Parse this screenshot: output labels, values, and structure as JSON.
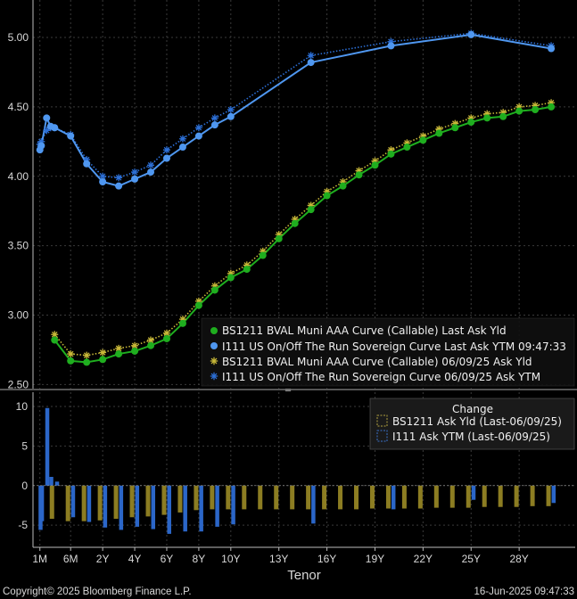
{
  "chart_data": [
    {
      "type": "line",
      "title": "",
      "ylim": [
        2.47,
        5.27
      ],
      "yticks": [
        "5.00",
        "4.50",
        "4.00",
        "3.50",
        "3.00",
        "2.50"
      ],
      "ytick_values": [
        5.0,
        4.5,
        4.0,
        3.5,
        3.0,
        2.5
      ],
      "grid": true,
      "legend_position": "bottom-right",
      "series": [
        {
          "name": "BS1211 BVAL Muni AAA Curve (Callable) Last Ask Yld",
          "color": "#1fae1f",
          "marker": "dot",
          "style": "solid",
          "points": [
            [
              1,
              2.82
            ],
            [
              2,
              2.67
            ],
            [
              3,
              2.66
            ],
            [
              4,
              2.68
            ],
            [
              5,
              2.72
            ],
            [
              6,
              2.74
            ],
            [
              7,
              2.78
            ],
            [
              8,
              2.83
            ],
            [
              9,
              2.94
            ],
            [
              10,
              3.07
            ],
            [
              11,
              3.18
            ],
            [
              12,
              3.27
            ],
            [
              13,
              3.33
            ],
            [
              14,
              3.43
            ],
            [
              15,
              3.55
            ],
            [
              16,
              3.66
            ],
            [
              17,
              3.76
            ],
            [
              18,
              3.86
            ],
            [
              19,
              3.93
            ],
            [
              20,
              4.01
            ],
            [
              21,
              4.08
            ],
            [
              22,
              4.16
            ],
            [
              23,
              4.21
            ],
            [
              24,
              4.26
            ],
            [
              25,
              4.31
            ],
            [
              26,
              4.35
            ],
            [
              27,
              4.39
            ],
            [
              28,
              4.42
            ],
            [
              29,
              4.43
            ],
            [
              30,
              4.47
            ],
            [
              31,
              4.48
            ],
            [
              32,
              4.5
            ]
          ]
        },
        {
          "name": "I111 US On/Off The Run Sovereign Curve Last Ask YTM 09:47:33",
          "color": "#4f97f0",
          "marker": "dot",
          "style": "solid",
          "points": [
            [
              0.08,
              4.19
            ],
            [
              0.17,
              4.22
            ],
            [
              0.5,
              4.42
            ],
            [
              0.75,
              4.36
            ],
            [
              1,
              4.35
            ],
            [
              2,
              4.29
            ],
            [
              3,
              4.09
            ],
            [
              4,
              3.96
            ],
            [
              5,
              3.93
            ],
            [
              6,
              3.98
            ],
            [
              7,
              4.03
            ],
            [
              8,
              4.13
            ],
            [
              9,
              4.21
            ],
            [
              10,
              4.29
            ],
            [
              11,
              4.37
            ],
            [
              12,
              4.43
            ],
            [
              17,
              4.82
            ],
            [
              22,
              4.94
            ],
            [
              27,
              5.02
            ],
            [
              32,
              4.92
            ]
          ]
        },
        {
          "name": "BS1211 BVAL Muni AAA Curve (Callable) 06/09/25 Ask Yld",
          "color": "#c8b838",
          "marker": "star",
          "style": "dotted",
          "points": [
            [
              1,
              2.86
            ],
            [
              2,
              2.72
            ],
            [
              3,
              2.71
            ],
            [
              4,
              2.73
            ],
            [
              5,
              2.76
            ],
            [
              6,
              2.78
            ],
            [
              7,
              2.82
            ],
            [
              8,
              2.87
            ],
            [
              9,
              2.97
            ],
            [
              10,
              3.1
            ],
            [
              11,
              3.21
            ],
            [
              12,
              3.3
            ],
            [
              13,
              3.36
            ],
            [
              14,
              3.46
            ],
            [
              15,
              3.58
            ],
            [
              16,
              3.69
            ],
            [
              17,
              3.79
            ],
            [
              18,
              3.89
            ],
            [
              19,
              3.96
            ],
            [
              20,
              4.04
            ],
            [
              21,
              4.11
            ],
            [
              22,
              4.19
            ],
            [
              23,
              4.24
            ],
            [
              24,
              4.29
            ],
            [
              25,
              4.34
            ],
            [
              26,
              4.38
            ],
            [
              27,
              4.42
            ],
            [
              28,
              4.45
            ],
            [
              29,
              4.46
            ],
            [
              30,
              4.5
            ],
            [
              31,
              4.51
            ],
            [
              32,
              4.53
            ]
          ]
        },
        {
          "name": "I111 US On/Off The Run Sovereign Curve 06/09/25 Ask YTM",
          "color": "#2c6fd6",
          "marker": "star",
          "style": "dotted",
          "points": [
            [
              0.08,
              4.23
            ],
            [
              0.17,
              4.25
            ],
            [
              0.5,
              4.33
            ],
            [
              0.75,
              4.35
            ],
            [
              1,
              4.35
            ],
            [
              2,
              4.3
            ],
            [
              3,
              4.12
            ],
            [
              4,
              4.0
            ],
            [
              5,
              3.99
            ],
            [
              6,
              4.03
            ],
            [
              7,
              4.08
            ],
            [
              8,
              4.19
            ],
            [
              9,
              4.27
            ],
            [
              10,
              4.35
            ],
            [
              11,
              4.42
            ],
            [
              12,
              4.48
            ],
            [
              17,
              4.87
            ],
            [
              22,
              4.97
            ],
            [
              27,
              5.03
            ],
            [
              32,
              4.94
            ]
          ]
        }
      ]
    },
    {
      "type": "bar",
      "title": "",
      "ylim": [
        -7.8,
        11.8
      ],
      "yticks": [
        "10",
        "5",
        "0",
        "-5"
      ],
      "ytick_values": [
        10,
        5,
        0,
        -5
      ],
      "legend_title": "Change",
      "legend_position": "top-right",
      "x_axis_label": "Tenor",
      "x_tick_labels": [
        "1M",
        "6M",
        "2Y",
        "4Y",
        "6Y",
        "8Y",
        "10Y",
        "13Y",
        "16Y",
        "19Y",
        "22Y",
        "25Y",
        "28Y"
      ],
      "x_tick_positions": [
        0.08,
        2,
        4,
        6,
        8,
        10,
        12,
        15,
        18,
        21,
        24,
        27,
        30
      ],
      "series": [
        {
          "name": "BS1211 Ask Yld (Last-06/09/25)",
          "color": "#8c7d22",
          "points": [
            [
              1,
              -4.2
            ],
            [
              2,
              -4.5
            ],
            [
              3,
              -4.5
            ],
            [
              4,
              -4.4
            ],
            [
              5,
              -4.2
            ],
            [
              6,
              -4.0
            ],
            [
              7,
              -3.9
            ],
            [
              8,
              -3.7
            ],
            [
              9,
              -3.4
            ],
            [
              10,
              -3.1
            ],
            [
              11,
              -3.0
            ],
            [
              12,
              -3.0
            ],
            [
              13,
              -3.0
            ],
            [
              14,
              -3.0
            ],
            [
              15,
              -3.0
            ],
            [
              16,
              -3.0
            ],
            [
              17,
              -3.0
            ],
            [
              18,
              -3.0
            ],
            [
              19,
              -3.0
            ],
            [
              20,
              -3.0
            ],
            [
              21,
              -2.9
            ],
            [
              22,
              -2.9
            ],
            [
              23,
              -2.9
            ],
            [
              24,
              -2.9
            ],
            [
              25,
              -2.8
            ],
            [
              26,
              -2.8
            ],
            [
              27,
              -2.8
            ],
            [
              28,
              -2.7
            ],
            [
              29,
              -2.7
            ],
            [
              30,
              -2.7
            ],
            [
              31,
              -2.6
            ],
            [
              32,
              -2.6
            ]
          ]
        },
        {
          "name": "I111 Ask YTM (Last-06/09/25)",
          "color": "#2b66c8",
          "points": [
            [
              0.08,
              -5.6
            ],
            [
              0.17,
              -4.5
            ],
            [
              0.5,
              9.8
            ],
            [
              0.75,
              1.1
            ],
            [
              1,
              0.5
            ],
            [
              2,
              -4.0
            ],
            [
              3,
              -4.6
            ],
            [
              4,
              -5.3
            ],
            [
              5,
              -5.6
            ],
            [
              6,
              -5.2
            ],
            [
              7,
              -5.5
            ],
            [
              8,
              -6.1
            ],
            [
              9,
              -5.8
            ],
            [
              10,
              -5.8
            ],
            [
              11,
              -5.2
            ],
            [
              12,
              -4.9
            ],
            [
              17,
              -4.8
            ],
            [
              22,
              -3.0
            ],
            [
              27,
              -1.8
            ],
            [
              32,
              -2.2
            ]
          ]
        }
      ]
    }
  ],
  "footer": {
    "copyright": "Copyright© 2025 Bloomberg Finance L.P.",
    "timestamp": "16-Jun-2025 09:47:33"
  }
}
